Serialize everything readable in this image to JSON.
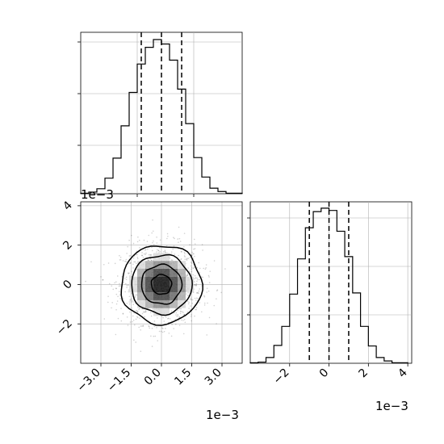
{
  "chart_data": [
    {
      "type": "histogram",
      "panel": "marginal-x",
      "bin_range": [
        -0.004,
        0.004
      ],
      "bin_width": 0.0004,
      "counts": [
        1,
        3,
        9,
        28,
        64,
        122,
        182,
        233,
        263,
        277,
        269,
        240,
        188,
        126,
        65,
        30,
        10,
        4,
        1,
        1
      ],
      "ymax": 290,
      "quantile_lines": [
        -0.001,
        0.0,
        0.001
      ],
      "line_style": "dashed",
      "tick_labels": [],
      "grid": true
    },
    {
      "type": "histogram",
      "panel": "marginal-y",
      "bin_range": [
        -0.004,
        0.004
      ],
      "bin_width": 0.0004,
      "counts": [
        1,
        2,
        10,
        31,
        64,
        120,
        181,
        235,
        263,
        269,
        265,
        229,
        185,
        122,
        64,
        30,
        10,
        4,
        1,
        1
      ],
      "ymax": 280,
      "quantile_lines": [
        -0.001,
        0.0,
        0.001
      ],
      "line_style": "dashed",
      "xlim": [
        -0.004,
        0.0042
      ],
      "xticks": [
        -2,
        0,
        2,
        4
      ],
      "tick_labels": [
        "−2",
        "0",
        "2",
        "4"
      ],
      "offset_text": "1e−3",
      "grid": true
    },
    {
      "type": "scatter",
      "panel": "joint",
      "distribution": "bivariate normal, no correlation",
      "mean": [
        0.0,
        0.0
      ],
      "std": [
        0.001,
        0.001
      ],
      "xlim": [
        -0.004,
        0.004
      ],
      "ylim": [
        -0.004,
        0.0042
      ],
      "xticks": [
        -3.0,
        -1.5,
        0.0,
        1.5,
        3.0
      ],
      "xtick_labels": [
        "−3.0",
        "−1.5",
        "0.0",
        "1.5",
        "3.0"
      ],
      "yticks": [
        -2,
        0,
        2,
        4
      ],
      "ytick_labels": [
        "−2",
        "0",
        "2",
        "4"
      ],
      "x_offset_text": "1e−3",
      "y_offset_text": "1e−3",
      "contour_radii_in_sigma": [
        0.5,
        1.0,
        1.5,
        2.0
      ],
      "grid": true
    }
  ]
}
